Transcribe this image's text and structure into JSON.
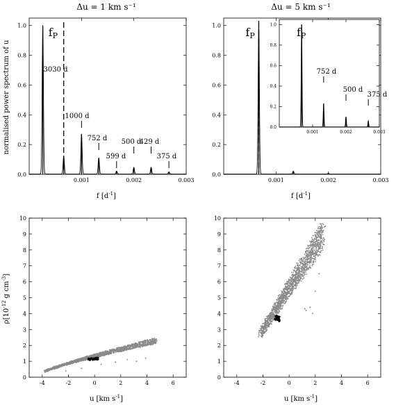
{
  "chart_data": [
    {
      "type": "line",
      "panel": "top-left",
      "title": "Δu = 1 km s⁻¹",
      "xlabel": "f  [d⁻¹]",
      "ylabel": "normalised power spectrum of u",
      "xlim": [
        0,
        0.003
      ],
      "ylim": [
        0,
        1.05
      ],
      "xticks": [
        "0.001",
        "0.002",
        "0.003"
      ],
      "yticks": [
        "0.0",
        "0.2",
        "0.4",
        "0.6",
        "0.8",
        "1.0"
      ],
      "peaks": [
        {
          "f": 0.00026,
          "p": 1.0
        },
        {
          "f": 0.00066,
          "p": 0.12
        },
        {
          "f": 0.001,
          "p": 0.27
        },
        {
          "f": 0.00133,
          "p": 0.11
        },
        {
          "f": 0.00167,
          "p": 0.02
        },
        {
          "f": 0.002,
          "p": 0.045
        },
        {
          "f": 0.00233,
          "p": 0.045
        },
        {
          "f": 0.00267,
          "p": 0.015
        }
      ],
      "fp_line": 0.00066,
      "fp_label": "f",
      "fp_sub": "P",
      "annotations": [
        {
          "text": "3030 d",
          "f": 0.00033
        },
        {
          "text": "1000 d",
          "f": 0.001
        },
        {
          "text": "752 d",
          "f": 0.00133
        },
        {
          "text": "599 d",
          "f": 0.00167
        },
        {
          "text": "500 d",
          "f": 0.002
        },
        {
          "text": "429 d",
          "f": 0.00233
        },
        {
          "text": "375 d",
          "f": 0.00267
        }
      ]
    },
    {
      "type": "line",
      "panel": "top-right",
      "title": "Δu = 5 km s⁻¹",
      "xlabel": "f  [d⁻¹]",
      "xlim": [
        0,
        0.003
      ],
      "ylim": [
        0,
        1.05
      ],
      "xticks": [
        "0.001",
        "0.002",
        "0.003"
      ],
      "yticks": [
        "0.0",
        "0.2",
        "0.4",
        "0.6",
        "0.8",
        "1.0"
      ],
      "peaks": [
        {
          "f": 0.00067,
          "p": 1.0
        },
        {
          "f": 0.00133,
          "p": 0.02
        },
        {
          "f": 0.002,
          "p": 0.005
        }
      ],
      "fp_line": 0.00067,
      "fp_label": "f",
      "fp_sub": "P",
      "inset": {
        "xlim": [
          0,
          0.003
        ],
        "ylim": [
          0,
          1.05
        ],
        "xticks": [
          "0.001",
          "0.002",
          "0.003"
        ],
        "yticks": [
          "0.0",
          "0.2",
          "0.4",
          "0.6",
          "0.8",
          "1.0"
        ],
        "peaks": [
          {
            "f": 0.00067,
            "p": 1.0
          },
          {
            "f": 0.00133,
            "p": 0.23
          },
          {
            "f": 0.002,
            "p": 0.1
          },
          {
            "f": 0.00267,
            "p": 0.06
          }
        ],
        "annotations": [
          {
            "text": "752 d",
            "f": 0.00133
          },
          {
            "text": "500 d",
            "f": 0.002
          },
          {
            "text": "375 d",
            "f": 0.00267
          }
        ]
      }
    },
    {
      "type": "scatter",
      "panel": "bottom-left",
      "xlabel": "u [km s⁻¹]",
      "ylabel": "ρ[10⁻¹² g cm⁻³]",
      "xlim": [
        -5,
        7
      ],
      "ylim": [
        0,
        10
      ],
      "xticks": [
        "-4",
        "-2",
        "0",
        "2",
        "4",
        "6"
      ],
      "yticks": [
        "0",
        "1",
        "2",
        "3",
        "4",
        "5",
        "6",
        "7",
        "8",
        "9",
        "10"
      ],
      "main_band": {
        "x_start": -3.8,
        "x_end": 4.7,
        "y_start": 0.35,
        "y_end": 2.3
      },
      "cluster": {
        "x": -0.1,
        "y": 1.15
      },
      "outliers": [
        [
          0.5,
          0.8
        ],
        [
          1.6,
          0.95
        ],
        [
          2.5,
          1.1
        ],
        [
          3.2,
          1.0
        ],
        [
          3.9,
          1.2
        ],
        [
          -1.0,
          0.55
        ],
        [
          -2.2,
          0.4
        ]
      ]
    },
    {
      "type": "scatter",
      "panel": "bottom-right",
      "xlabel": "u [km s⁻¹]",
      "xlim": [
        -5,
        7
      ],
      "ylim": [
        0,
        10
      ],
      "xticks": [
        "-4",
        "-2",
        "0",
        "2",
        "4",
        "6"
      ],
      "yticks": [
        "0",
        "1",
        "2",
        "3",
        "4",
        "5",
        "6",
        "7",
        "8",
        "9",
        "10"
      ],
      "main_band": {
        "x_start": -2.2,
        "x_end": 2.6,
        "y_start": 2.7,
        "y_end": 9.0
      },
      "cluster": {
        "x": -0.9,
        "y": 3.7
      },
      "outliers": [
        [
          1.3,
          4.2
        ],
        [
          1.6,
          4.4
        ],
        [
          2.0,
          5.4
        ],
        [
          2.3,
          6.5
        ],
        [
          1.8,
          4.0
        ],
        [
          1.2,
          4.3
        ]
      ]
    }
  ],
  "colors": {
    "scatter_main": "#8a8a8a",
    "scatter_cluster": "#000000",
    "line": "#000000"
  }
}
